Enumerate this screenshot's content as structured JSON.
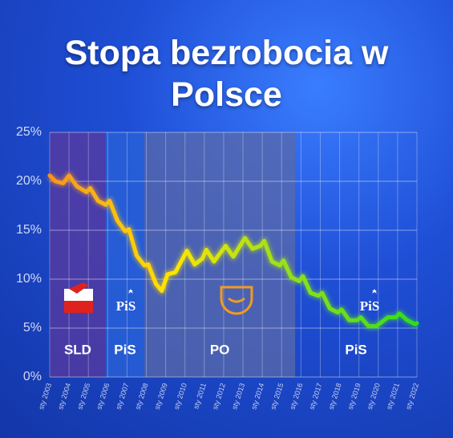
{
  "chart_data": {
    "type": "line",
    "title": "Stopa bezrobocia w Polsce",
    "x": [
      2003.0,
      2003.3,
      2003.7,
      2004.0,
      2004.4,
      2004.9,
      2005.1,
      2005.5,
      2005.9,
      2006.1,
      2006.5,
      2006.9,
      2007.1,
      2007.5,
      2007.9,
      2008.1,
      2008.5,
      2008.8,
      2009.1,
      2009.5,
      2010.1,
      2010.5,
      2010.9,
      2011.1,
      2011.5,
      2012.1,
      2012.5,
      2013.1,
      2013.5,
      2013.9,
      2014.1,
      2014.5,
      2014.9,
      2015.1,
      2015.5,
      2015.9,
      2016.1,
      2016.5,
      2016.9,
      2017.1,
      2017.5,
      2017.9,
      2018.1,
      2018.5,
      2018.9,
      2019.1,
      2019.5,
      2019.9,
      2020.1,
      2020.5,
      2020.9,
      2021.1,
      2021.5,
      2021.9,
      2022.0
    ],
    "values": [
      20.6,
      20.0,
      19.8,
      20.6,
      19.5,
      18.9,
      19.3,
      18.0,
      17.6,
      18.0,
      16.0,
      14.9,
      15.1,
      12.4,
      11.4,
      11.5,
      9.5,
      8.8,
      10.5,
      10.7,
      12.9,
      11.5,
      12.1,
      13.0,
      11.8,
      13.4,
      12.3,
      14.2,
      13.1,
      13.4,
      13.9,
      11.8,
      11.4,
      11.9,
      10.2,
      9.8,
      10.3,
      8.6,
      8.3,
      8.6,
      7.0,
      6.6,
      6.9,
      5.8,
      5.8,
      6.1,
      5.2,
      5.2,
      5.5,
      6.1,
      6.1,
      6.5,
      5.8,
      5.4,
      5.5
    ],
    "line_gradient": [
      "#f7931e",
      "#ffe600",
      "#8fe01a",
      "#2fdc1f"
    ],
    "xlim": [
      2003,
      2022
    ],
    "xticks": [
      {
        "value": 2003,
        "label": "sty 2003"
      },
      {
        "value": 2004,
        "label": "sty 2004"
      },
      {
        "value": 2005,
        "label": "sty 2005"
      },
      {
        "value": 2006,
        "label": "sty 2006"
      },
      {
        "value": 2007,
        "label": "sty 2007"
      },
      {
        "value": 2008,
        "label": "sty 2008"
      },
      {
        "value": 2009,
        "label": "sty 2009"
      },
      {
        "value": 2010,
        "label": "sty 2010"
      },
      {
        "value": 2011,
        "label": "sty 2011"
      },
      {
        "value": 2012,
        "label": "sty 2012"
      },
      {
        "value": 2013,
        "label": "sty 2013"
      },
      {
        "value": 2014,
        "label": "sty 2014"
      },
      {
        "value": 2015,
        "label": "sty 2015"
      },
      {
        "value": 2016,
        "label": "sty 2016"
      },
      {
        "value": 2017,
        "label": "sty 2017"
      },
      {
        "value": 2018,
        "label": "sty 2018"
      },
      {
        "value": 2019,
        "label": "sty 2019"
      },
      {
        "value": 2020,
        "label": "sty 2020"
      },
      {
        "value": 2021,
        "label": "sty 2021"
      },
      {
        "value": 2022,
        "label": "sty 2022"
      }
    ],
    "ylim": [
      0,
      25
    ],
    "yticks": [
      {
        "value": 0,
        "label": "0%"
      },
      {
        "value": 5,
        "label": "5%"
      },
      {
        "value": 10,
        "label": "10%"
      },
      {
        "value": 15,
        "label": "15%"
      },
      {
        "value": 20,
        "label": "20%"
      },
      {
        "value": 25,
        "label": "25%"
      }
    ],
    "grid": true,
    "periods": [
      {
        "label": "SLD",
        "start": 2003,
        "end": 2005.9,
        "color": "#5a3a9e"
      },
      {
        "label": "PiS",
        "start": 2005.9,
        "end": 2007.9,
        "color": "#2a63d8"
      },
      {
        "label": "PO",
        "start": 2007.9,
        "end": 2015.7,
        "color": "#5b6aa8"
      },
      {
        "label": "PiS",
        "start": 2015.7,
        "end": 2022,
        "color": "none"
      }
    ]
  }
}
